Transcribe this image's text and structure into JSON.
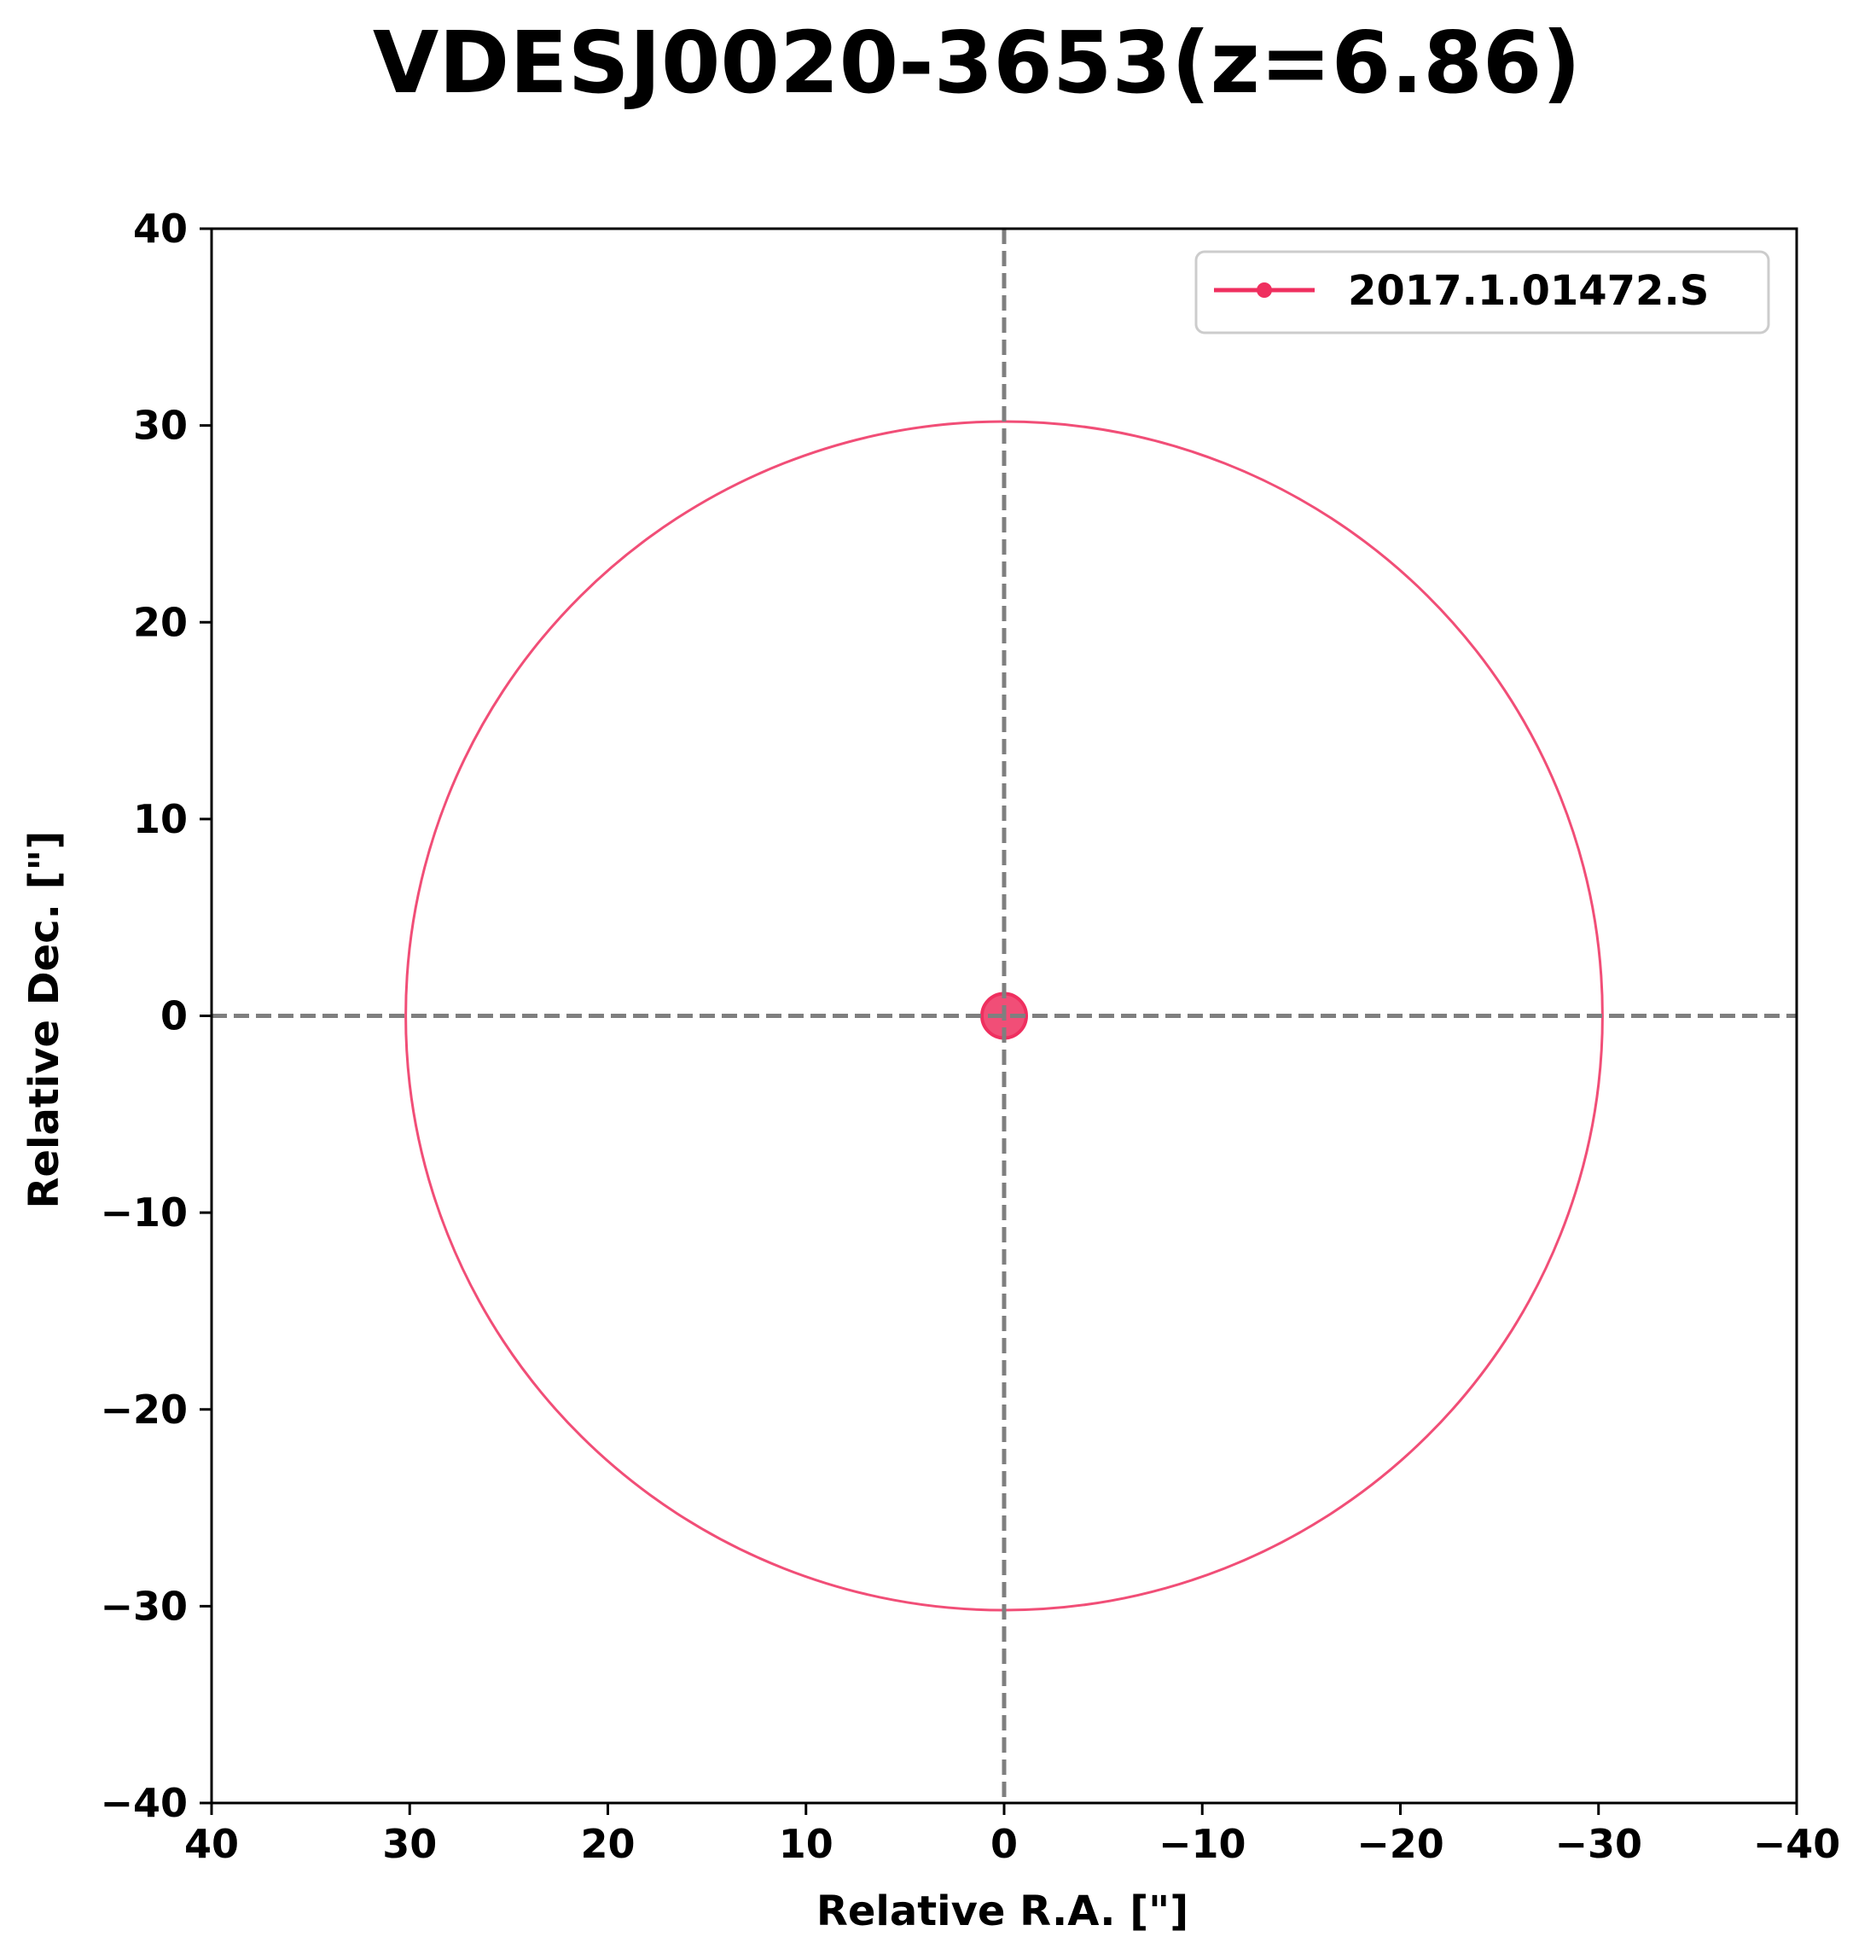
{
  "chart_data": {
    "type": "scatter",
    "title": "VDESJ0020-3653(z=6.86)",
    "xlabel": "Relative R.A. [\"]",
    "ylabel": "Relative Dec. [\"]",
    "xlim": [
      40,
      -40
    ],
    "ylim": [
      -40,
      40
    ],
    "x_ticks": [
      40,
      30,
      20,
      10,
      0,
      -10,
      -20,
      -30,
      -40
    ],
    "y_ticks": [
      -40,
      -30,
      -20,
      -10,
      0,
      10,
      20,
      30,
      40
    ],
    "x_tick_labels": [
      "40",
      "30",
      "20",
      "10",
      "0",
      "−10",
      "−20",
      "−30",
      "−40"
    ],
    "y_tick_labels": [
      "−40",
      "−30",
      "−20",
      "−10",
      "0",
      "10",
      "20",
      "30",
      "40"
    ],
    "reference_lines": {
      "x": 0,
      "y": 0,
      "style": "dashed",
      "color": "#7f7f7f"
    },
    "grid": false,
    "legend_position": "upper right",
    "series": [
      {
        "name": "2017.1.01472.S",
        "color": "#ef2f5f",
        "points": [
          {
            "x": 0,
            "y": 0
          }
        ],
        "field_radius": 30.2
      }
    ]
  }
}
